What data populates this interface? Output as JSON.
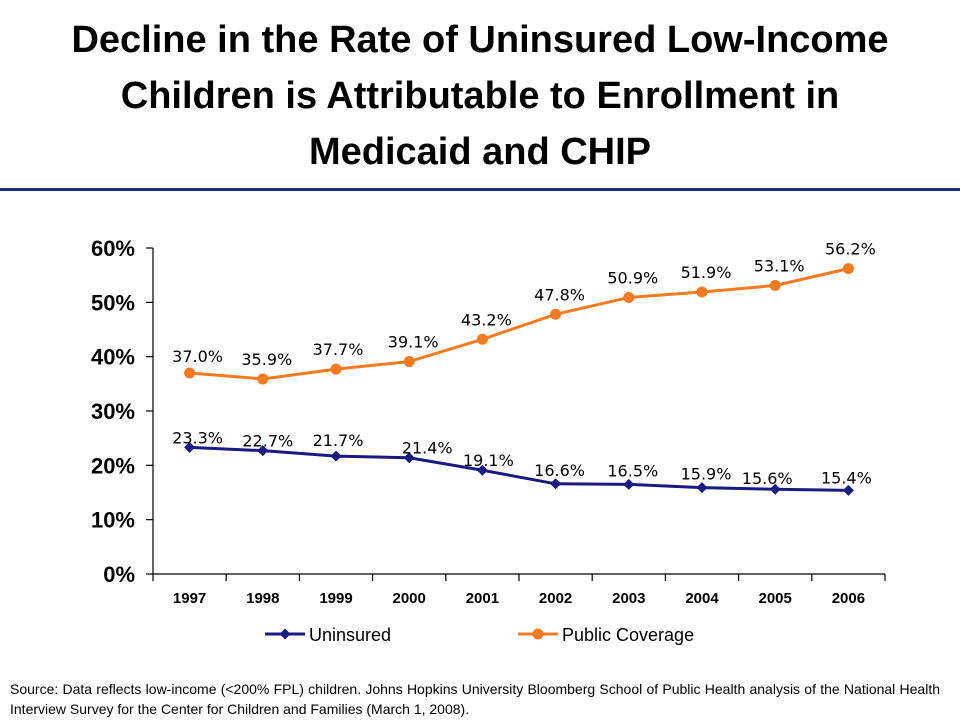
{
  "title": "Decline in the Rate of Uninsured Low-Income Children is Attributable to Enrollment in Medicaid and CHIP",
  "source": "Source: Data reflects low-income (<200% FPL) children. Johns Hopkins University Bloomberg School of Public Health analysis of the National Health Interview Survey for the Center for Children and Families (March 1, 2008).",
  "colors": {
    "uninsured": "#1a1a80",
    "public": "#f47b20",
    "rule": "#1f2d7a"
  },
  "chart_data": {
    "type": "line",
    "title": "",
    "xlabel": "",
    "ylabel": "",
    "categories": [
      "1997",
      "1998",
      "1999",
      "2000",
      "2001",
      "2002",
      "2003",
      "2004",
      "2005",
      "2006"
    ],
    "ylim": [
      0,
      60
    ],
    "yticks": [
      0,
      10,
      20,
      30,
      40,
      50,
      60
    ],
    "ytick_labels": [
      "0%",
      "10%",
      "20%",
      "30%",
      "40%",
      "50%",
      "60%"
    ],
    "grid": false,
    "legend_position": "bottom",
    "series": [
      {
        "name": "Uninsured",
        "values": [
          23.3,
          22.7,
          21.7,
          21.4,
          19.1,
          16.6,
          16.5,
          15.9,
          15.6,
          15.4
        ],
        "labels": [
          "23.3%",
          "22.7%",
          "21.7%",
          "21.4%",
          "19.1%",
          "16.6%",
          "16.5%",
          "15.9%",
          "15.6%",
          "15.4%"
        ],
        "marker": "diamond",
        "color": "#1a1a80"
      },
      {
        "name": "Public Coverage",
        "values": [
          37.0,
          35.9,
          37.7,
          39.1,
          43.2,
          47.8,
          50.9,
          51.9,
          53.1,
          56.2
        ],
        "labels": [
          "37.0%",
          "35.9%",
          "37.7%",
          "39.1%",
          "43.2%",
          "47.8%",
          "50.9%",
          "51.9%",
          "53.1%",
          "56.2%"
        ],
        "marker": "circle",
        "color": "#f47b20"
      }
    ]
  }
}
